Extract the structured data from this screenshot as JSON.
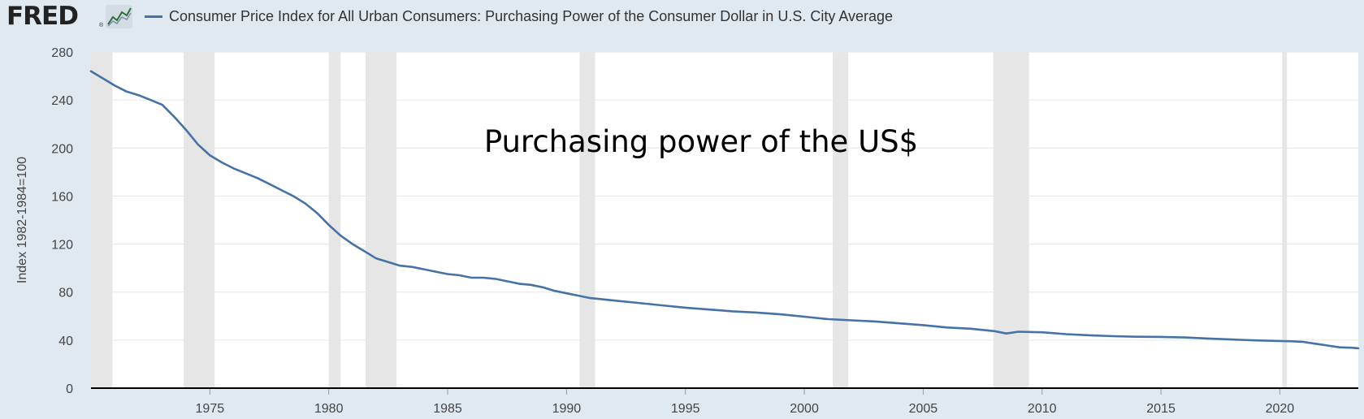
{
  "header": {
    "logo_text": "FRED",
    "logo_reg": "®",
    "logo_icon": "line-chart-icon",
    "legend_label": "Consumer Price Index for All Urban Consumers: Purchasing Power of the Consumer Dollar in U.S. City Average"
  },
  "chart_data": {
    "type": "line",
    "title": "",
    "xlabel": "",
    "ylabel": "Index 1982-1984=100",
    "annotation": "Purchasing power of the US$",
    "xlim": [
      1970.0,
      2023.3
    ],
    "ylim": [
      0,
      280
    ],
    "yticks": [
      0,
      40,
      80,
      120,
      160,
      200,
      240,
      280
    ],
    "xticks": [
      1975,
      1980,
      1985,
      1990,
      1995,
      2000,
      2005,
      2010,
      2015,
      2020
    ],
    "grid": true,
    "legend": "top-left",
    "colors": {
      "line": "#4572a7",
      "recession": "#e6e6e6",
      "background": "#e1e9f0",
      "plot": "#ffffff"
    },
    "recessions": [
      [
        1970.0,
        1970.9
      ],
      [
        1973.9,
        1975.2
      ],
      [
        1980.0,
        1980.5
      ],
      [
        1981.55,
        1982.85
      ],
      [
        1990.55,
        1991.2
      ],
      [
        2001.2,
        2001.85
      ],
      [
        2007.95,
        2009.45
      ],
      [
        2020.1,
        2020.3
      ]
    ],
    "series": [
      {
        "name": "Consumer Price Index for All Urban Consumers: Purchasing Power of the Consumer Dollar in U.S. City Average",
        "x": [
          1970.0,
          1970.5,
          1971.0,
          1971.5,
          1972.0,
          1972.5,
          1973.0,
          1973.5,
          1974.0,
          1974.5,
          1975.0,
          1975.5,
          1976.0,
          1976.5,
          1977.0,
          1977.5,
          1978.0,
          1978.5,
          1979.0,
          1979.5,
          1980.0,
          1980.5,
          1981.0,
          1981.5,
          1982.0,
          1982.5,
          1983.0,
          1983.5,
          1984.0,
          1984.5,
          1985.0,
          1985.5,
          1986.0,
          1986.5,
          1987.0,
          1987.5,
          1988.0,
          1988.5,
          1989.0,
          1989.5,
          1990.0,
          1990.5,
          1991.0,
          1992.0,
          1993.0,
          1994.0,
          1995.0,
          1996.0,
          1997.0,
          1998.0,
          1999.0,
          2000.0,
          2001.0,
          2002.0,
          2003.0,
          2004.0,
          2005.0,
          2006.0,
          2007.0,
          2008.0,
          2008.5,
          2009.0,
          2010.0,
          2011.0,
          2012.0,
          2013.0,
          2014.0,
          2015.0,
          2016.0,
          2017.0,
          2018.0,
          2019.0,
          2020.0,
          2020.5,
          2021.0,
          2021.5,
          2022.0,
          2022.5,
          2023.0,
          2023.3
        ],
        "values": [
          264,
          258,
          252,
          247,
          244,
          240,
          236,
          226,
          215,
          203,
          194,
          188,
          183,
          179,
          175,
          170,
          165,
          160,
          154,
          146,
          136,
          127,
          120,
          114,
          108,
          105,
          102,
          101,
          99,
          97,
          95,
          94,
          92,
          92,
          91,
          89,
          87,
          86,
          84,
          81,
          79,
          77,
          75,
          73,
          71,
          69,
          67,
          65.5,
          64,
          63,
          61.5,
          59.5,
          57.5,
          56.5,
          55.5,
          54,
          52.5,
          50.5,
          49.5,
          47.5,
          45.5,
          47,
          46.5,
          45,
          44,
          43.3,
          42.8,
          42.7,
          42.2,
          41.3,
          40.5,
          39.8,
          39.3,
          39.0,
          38.5,
          37.0,
          35.5,
          34.0,
          33.7,
          33.2
        ]
      }
    ]
  }
}
